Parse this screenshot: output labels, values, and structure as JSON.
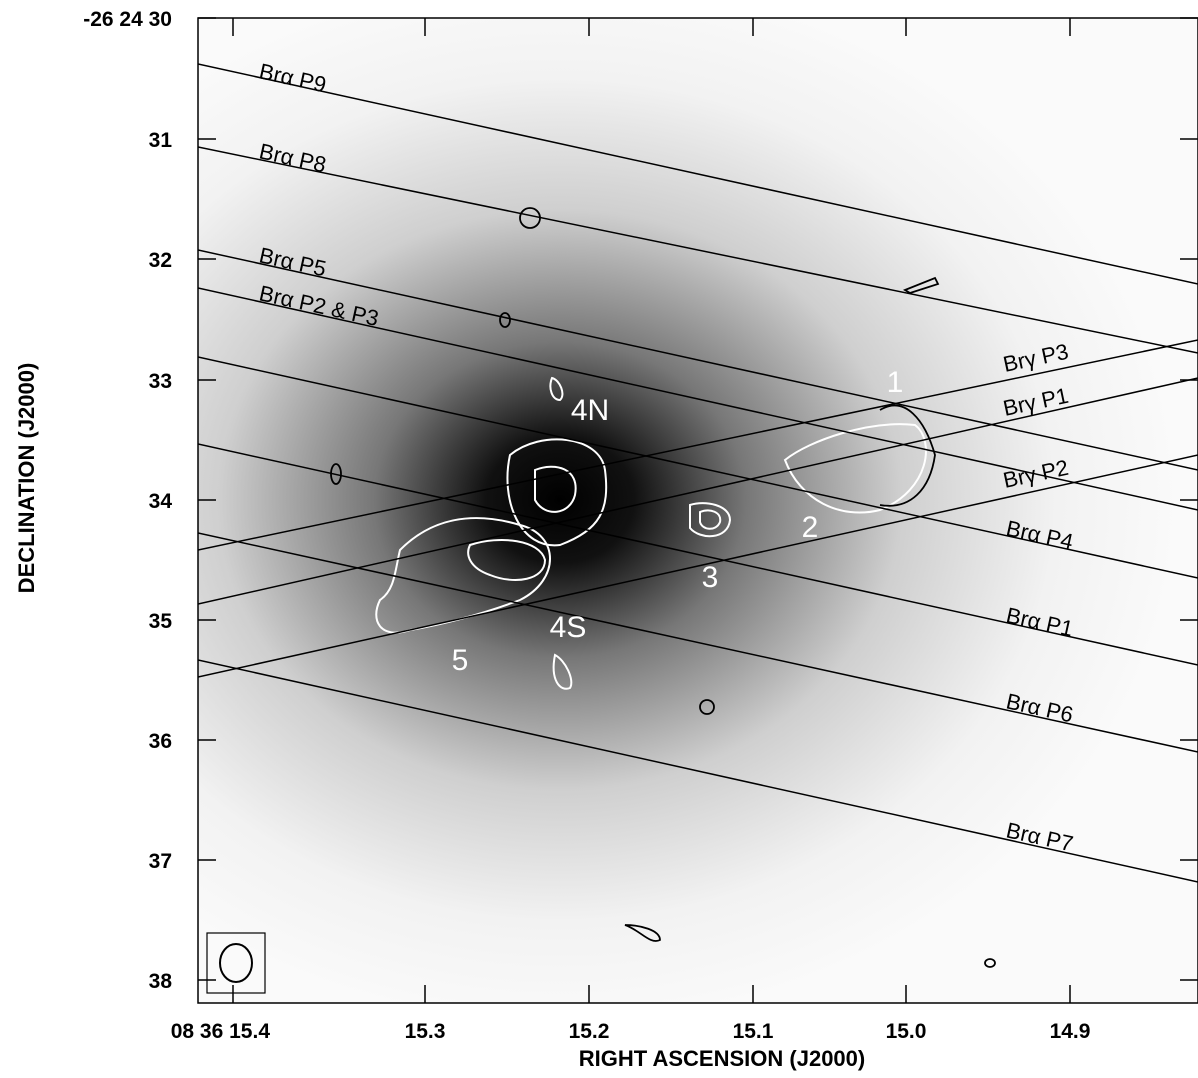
{
  "figure": {
    "x_axis_label": "RIGHT ASCENSION (J2000)",
    "y_axis_label": "DECLINATION (J2000)",
    "x_tick_labels": [
      "08 36 15.4",
      "15.3",
      "15.2",
      "15.1",
      "15.0",
      "14.9"
    ],
    "y_tick_labels": [
      "-26 24 30",
      "31",
      "32",
      "33",
      "34",
      "35",
      "36",
      "37",
      "38"
    ],
    "slit_labels": [
      "Brα  P9",
      "Brα  P8",
      "Brα  P5",
      "Brα  P2 & P3",
      "Brγ  P3",
      "Brγ  P1",
      "Brγ  P2",
      "Brα  P4",
      "Brα  P1",
      "Brα  P6",
      "Brα  P7"
    ],
    "source_labels": [
      "1",
      "2",
      "3",
      "4N",
      "4S",
      "5"
    ]
  }
}
